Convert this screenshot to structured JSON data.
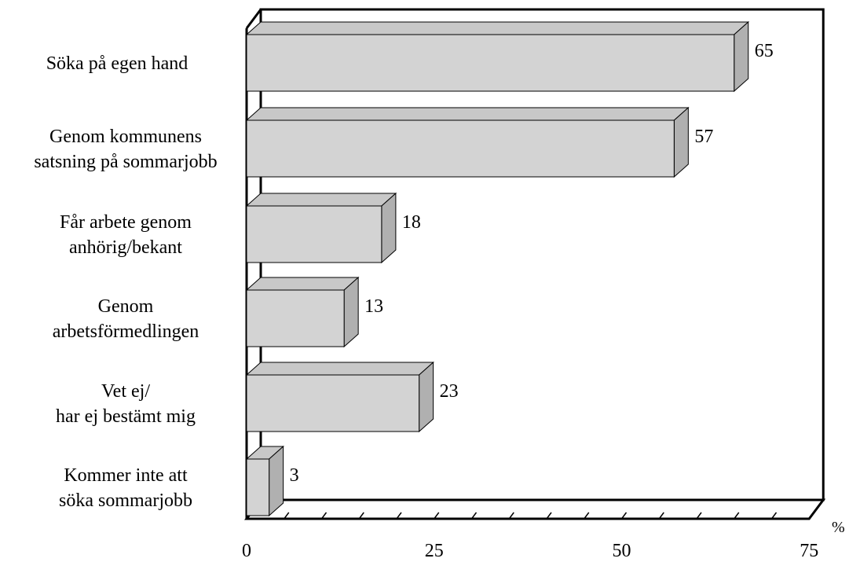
{
  "chart_data": {
    "type": "bar",
    "orientation": "horizontal",
    "style": "3d",
    "categories": [
      [
        "Söka på egen hand"
      ],
      [
        "Genom kommunens",
        "satsning på sommarjobb"
      ],
      [
        "Får arbete genom",
        "anhörig/bekant"
      ],
      [
        "Genom",
        "arbetsförmedlingen"
      ],
      [
        "Vet ej/",
        "har ej bestämt mig"
      ],
      [
        "Kommer inte att",
        "söka sommarjobb"
      ]
    ],
    "values": [
      65,
      57,
      18,
      13,
      23,
      3
    ],
    "value_labels": [
      "65",
      "57",
      "18",
      "13",
      "23",
      "3"
    ],
    "xlim": [
      0,
      75
    ],
    "xticks": [
      "0",
      "25",
      "50",
      "75"
    ],
    "unit": "%",
    "title": "",
    "xlabel": "",
    "ylabel": "",
    "grid": false,
    "colors": {
      "bar_front": "#d3d3d3",
      "bar_top": "#c8c8c8",
      "bar_side": "#b0b0b0",
      "wall": "#ffffff",
      "frame": "#000000"
    }
  }
}
